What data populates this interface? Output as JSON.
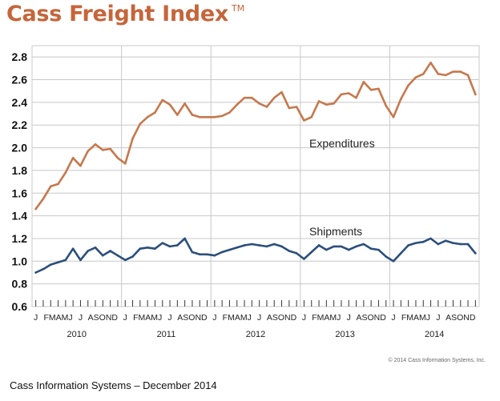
{
  "title": "Cass Freight Index",
  "trademark": "TM",
  "copyright": "© 2014 Cass Information Systems, Inc.",
  "caption": "Cass Information Systems – December 2014",
  "colors": {
    "expenditures": "#c6784d",
    "shipments": "#2b4f7c",
    "title": "#c6653a",
    "grid": "#c8c8c8"
  },
  "chart_data": {
    "type": "line",
    "title": "Cass Freight Index",
    "xlabel": "",
    "ylabel": "",
    "ylim": [
      0.6,
      2.9
    ],
    "yticks": [
      "0.6",
      "0.8",
      "1.0",
      "1.2",
      "1.4",
      "1.6",
      "1.8",
      "2.0",
      "2.2",
      "2.4",
      "2.6",
      "2.8"
    ],
    "years": [
      "2010",
      "2011",
      "2012",
      "2013",
      "2014"
    ],
    "month_labels": [
      "J",
      "FMAMJ",
      "J",
      "ASOND"
    ],
    "grid": true,
    "series": [
      {
        "name": "Expenditures",
        "values": [
          1.46,
          1.55,
          1.66,
          1.68,
          1.78,
          1.91,
          1.84,
          1.97,
          2.03,
          1.98,
          1.99,
          1.91,
          1.86,
          2.08,
          2.21,
          2.27,
          2.31,
          2.42,
          2.38,
          2.29,
          2.39,
          2.29,
          2.27,
          2.27,
          2.27,
          2.28,
          2.31,
          2.38,
          2.44,
          2.44,
          2.39,
          2.36,
          2.44,
          2.49,
          2.35,
          2.36,
          2.24,
          2.27,
          2.41,
          2.38,
          2.39,
          2.47,
          2.48,
          2.44,
          2.58,
          2.51,
          2.52,
          2.37,
          2.27,
          2.43,
          2.55,
          2.62,
          2.65,
          2.75,
          2.65,
          2.64,
          2.67,
          2.67,
          2.64,
          2.47
        ]
      },
      {
        "name": "Shipments",
        "values": [
          0.9,
          0.93,
          0.97,
          0.99,
          1.01,
          1.11,
          1.01,
          1.09,
          1.12,
          1.05,
          1.09,
          1.05,
          1.01,
          1.04,
          1.11,
          1.12,
          1.11,
          1.16,
          1.13,
          1.14,
          1.2,
          1.08,
          1.06,
          1.06,
          1.05,
          1.08,
          1.1,
          1.12,
          1.14,
          1.15,
          1.14,
          1.13,
          1.15,
          1.13,
          1.09,
          1.07,
          1.02,
          1.08,
          1.14,
          1.1,
          1.13,
          1.13,
          1.1,
          1.13,
          1.15,
          1.11,
          1.1,
          1.04,
          1.0,
          1.07,
          1.14,
          1.16,
          1.17,
          1.2,
          1.15,
          1.18,
          1.16,
          1.15,
          1.15,
          1.07
        ]
      }
    ],
    "annotations": [
      {
        "text": "Expenditures",
        "series": "Expenditures"
      },
      {
        "text": "Shipments",
        "series": "Shipments"
      }
    ]
  }
}
